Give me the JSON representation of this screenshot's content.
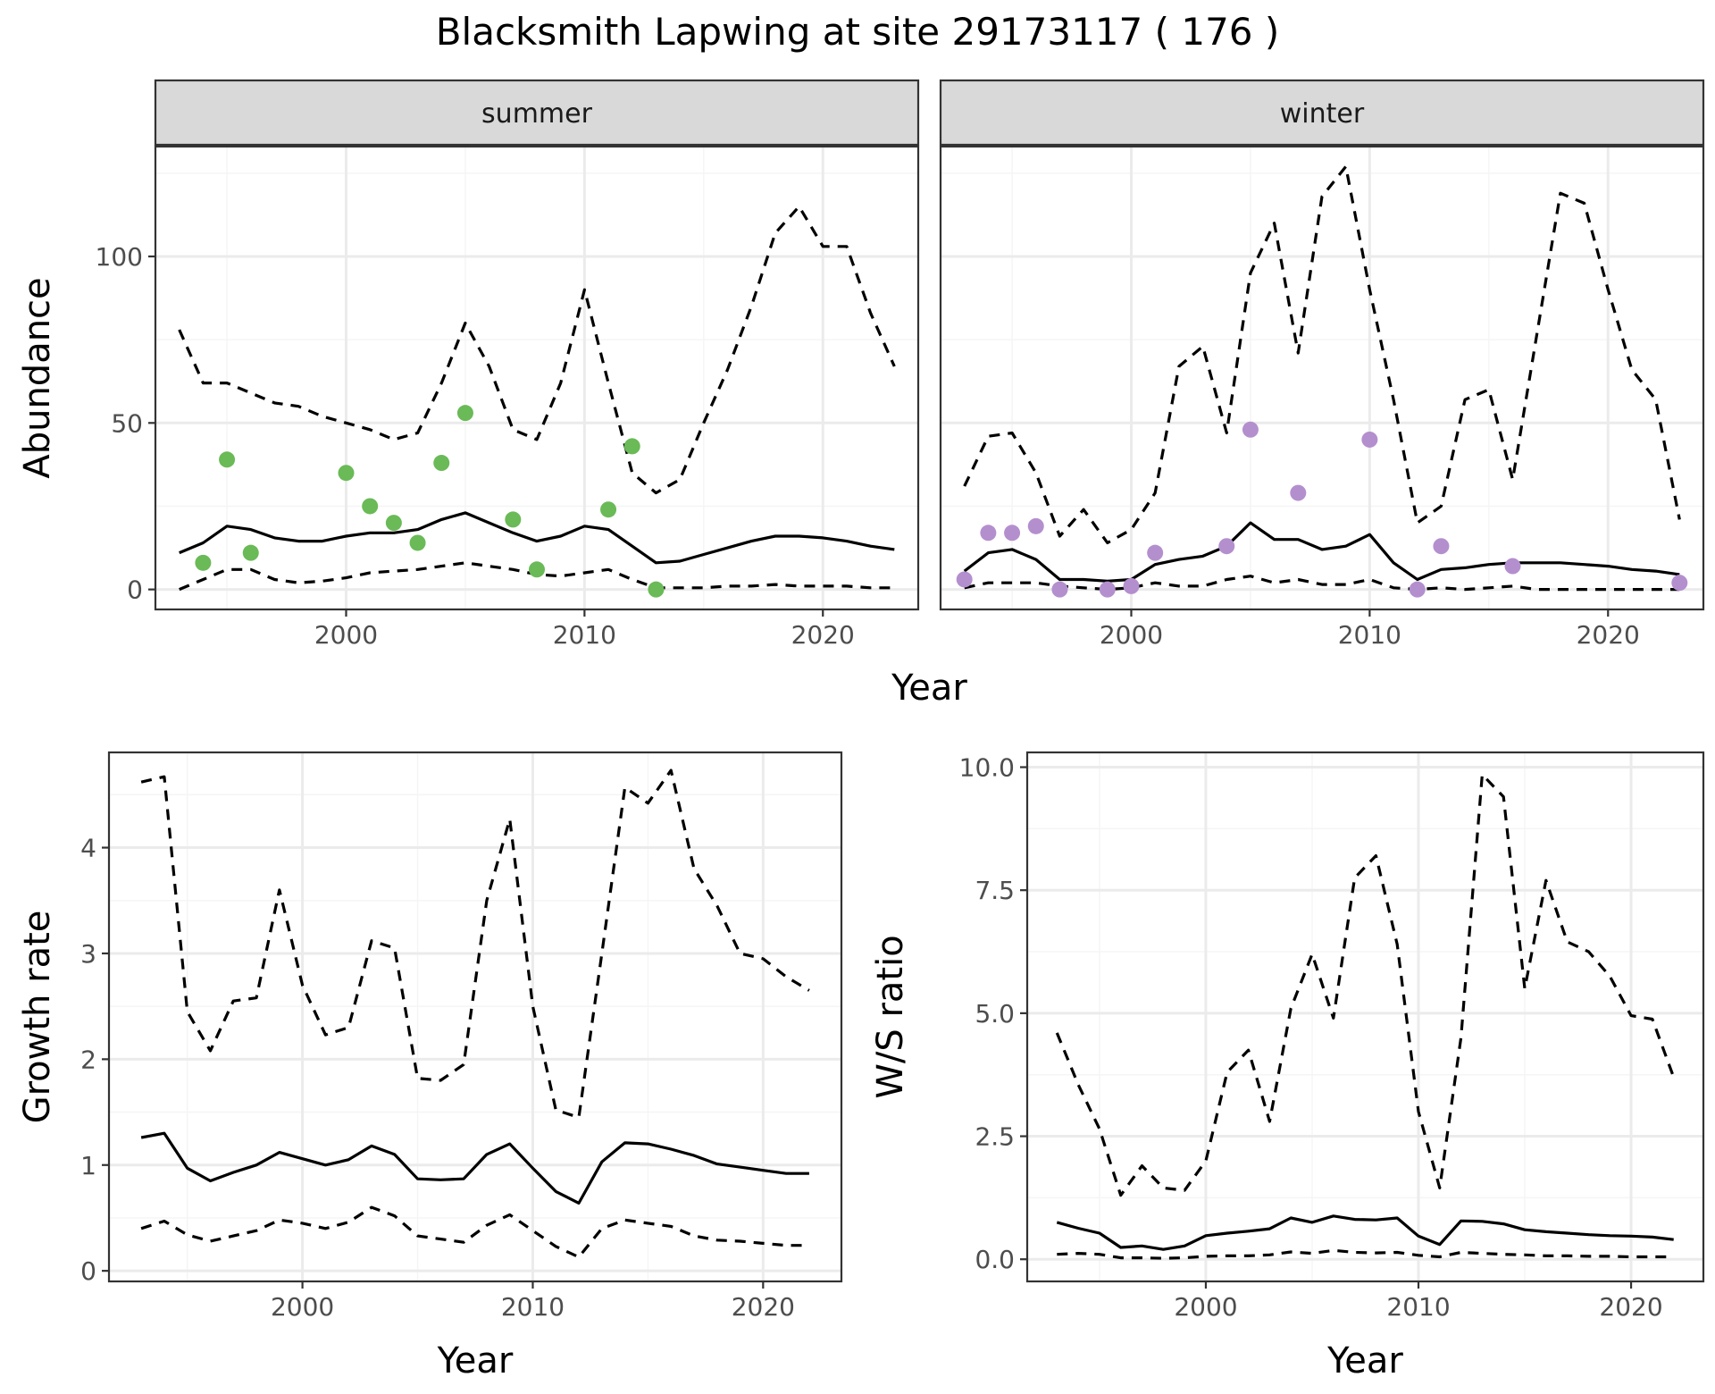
{
  "title": "Blacksmith Lapwing at site 29173117 ( 176 )",
  "colors": {
    "summer_points": "#6aba57",
    "winter_points": "#b48fce",
    "line": "#000000",
    "grid_major": "#ebebeb",
    "grid_minor": "#f5f5f5",
    "strip_bg": "#d9d9d9",
    "panel_border": "#333333"
  },
  "chart_data": [
    {
      "type": "line",
      "panel": "summer",
      "strip_label": "summer",
      "xlabel": "Year",
      "ylabel": "Abundance",
      "xlim": [
        1992,
        2024
      ],
      "ylim": [
        -6,
        133
      ],
      "x_ticks": [
        2000,
        2010,
        2020
      ],
      "y_ticks": [
        0,
        50,
        100
      ],
      "grid": true,
      "x": [
        1993,
        1994,
        1995,
        1996,
        1997,
        1998,
        1999,
        2000,
        2001,
        2002,
        2003,
        2004,
        2005,
        2006,
        2007,
        2008,
        2009,
        2010,
        2011,
        2012,
        2013,
        2014,
        2015,
        2016,
        2017,
        2018,
        2019,
        2020,
        2021,
        2022,
        2023
      ],
      "series": [
        {
          "role": "mean",
          "style": "solid",
          "values": [
            11,
            14,
            19,
            18,
            15.5,
            14.5,
            14.5,
            16,
            17,
            17,
            18,
            21,
            23,
            20,
            17,
            14.5,
            16,
            19,
            18,
            13,
            8,
            8.5,
            10.5,
            12.5,
            14.5,
            16,
            16,
            15.5,
            14.5,
            13,
            12
          ]
        },
        {
          "role": "upper",
          "style": "dashed",
          "values": [
            78,
            62,
            62,
            59,
            56,
            55,
            52,
            50,
            48,
            45,
            47,
            62,
            80,
            67,
            48,
            45,
            62,
            90,
            62,
            35,
            29,
            33,
            50,
            66,
            85,
            107,
            115,
            103,
            103,
            83,
            67
          ]
        },
        {
          "role": "lower",
          "style": "dashed",
          "values": [
            0,
            3,
            6,
            6,
            3,
            2,
            2.5,
            3.5,
            5,
            5.5,
            6,
            7,
            8,
            7,
            6,
            4.5,
            4,
            5,
            6,
            3,
            0.5,
            0.5,
            0.5,
            1,
            1,
            1.5,
            1,
            1,
            1,
            0.5,
            0.5
          ]
        }
      ],
      "points": {
        "x": [
          1994,
          1995,
          1996,
          2000,
          2001,
          2002,
          2003,
          2004,
          2005,
          2007,
          2008,
          2011,
          2012,
          2013
        ],
        "y": [
          8,
          39,
          11,
          35,
          25,
          20,
          14,
          38,
          53,
          21,
          6,
          24,
          43,
          0
        ]
      }
    },
    {
      "type": "line",
      "panel": "winter",
      "strip_label": "winter",
      "xlabel": "Year",
      "ylabel": "Abundance",
      "xlim": [
        1992,
        2024
      ],
      "ylim": [
        -6,
        133
      ],
      "x_ticks": [
        2000,
        2010,
        2020
      ],
      "y_ticks": [
        0,
        50,
        100
      ],
      "grid": true,
      "x": [
        1993,
        1994,
        1995,
        1996,
        1997,
        1998,
        1999,
        2000,
        2001,
        2002,
        2003,
        2004,
        2005,
        2006,
        2007,
        2008,
        2009,
        2010,
        2011,
        2012,
        2013,
        2014,
        2015,
        2016,
        2017,
        2018,
        2019,
        2020,
        2021,
        2022,
        2023
      ],
      "series": [
        {
          "role": "mean",
          "style": "solid",
          "values": [
            5.5,
            11,
            12,
            9,
            3,
            3,
            2.5,
            3,
            7.5,
            9,
            10,
            13,
            20,
            15,
            15,
            12,
            13,
            16.5,
            8,
            3,
            6,
            6.5,
            7.5,
            8,
            8,
            8,
            7.5,
            7,
            6,
            5.5,
            4.5
          ]
        },
        {
          "role": "upper",
          "style": "dashed",
          "values": [
            31,
            46,
            47,
            35,
            16,
            24,
            14,
            18,
            29,
            67,
            73,
            47,
            95,
            110,
            71,
            118,
            127,
            90,
            57,
            20,
            25,
            57,
            60,
            33,
            76,
            119,
            116,
            90,
            66,
            57,
            21
          ]
        },
        {
          "role": "lower",
          "style": "dashed",
          "values": [
            0.5,
            2,
            2,
            2,
            1,
            0.5,
            0,
            0.5,
            2,
            1,
            1,
            3,
            4,
            2,
            3,
            1.5,
            1.5,
            3,
            0.5,
            0,
            0.5,
            0,
            0.5,
            1,
            0,
            0,
            0,
            0,
            0,
            0,
            0
          ]
        }
      ],
      "points": {
        "x": [
          1993,
          1994,
          1995,
          1996,
          1997,
          1999,
          2000,
          2001,
          2004,
          2005,
          2007,
          2010,
          2012,
          2013,
          2016,
          2023
        ],
        "y": [
          3,
          17,
          17,
          19,
          0,
          0,
          1,
          11,
          13,
          48,
          29,
          45,
          0,
          13,
          7,
          2
        ]
      }
    },
    {
      "type": "line",
      "panel": "growth",
      "xlabel": "Year",
      "ylabel": "Growth rate",
      "xlim": [
        1991.6,
        2023.4
      ],
      "ylim": [
        -0.1,
        4.9
      ],
      "x_ticks": [
        2000,
        2010,
        2020
      ],
      "y_ticks": [
        0,
        1,
        2,
        3,
        4
      ],
      "grid": true,
      "x": [
        1993,
        1994,
        1995,
        1996,
        1997,
        1998,
        1999,
        2000,
        2001,
        2002,
        2003,
        2004,
        2005,
        2006,
        2007,
        2008,
        2009,
        2010,
        2011,
        2012,
        2013,
        2014,
        2015,
        2016,
        2017,
        2018,
        2019,
        2020,
        2021,
        2022
      ],
      "series": [
        {
          "role": "mean",
          "style": "solid",
          "values": [
            1.26,
            1.3,
            0.97,
            0.85,
            0.93,
            1.0,
            1.12,
            1.06,
            1.0,
            1.05,
            1.18,
            1.1,
            0.87,
            0.86,
            0.87,
            1.1,
            1.2,
            0.97,
            0.75,
            0.64,
            1.03,
            1.21,
            1.2,
            1.15,
            1.09,
            1.01,
            0.98,
            0.95,
            0.92,
            0.92
          ]
        },
        {
          "role": "upper",
          "style": "dashed",
          "values": [
            4.62,
            4.67,
            2.45,
            2.08,
            2.55,
            2.58,
            3.6,
            2.7,
            2.23,
            2.3,
            3.12,
            3.05,
            1.82,
            1.8,
            1.95,
            3.5,
            4.27,
            2.5,
            1.52,
            1.45,
            3.0,
            4.57,
            4.42,
            4.73,
            3.8,
            3.45,
            3.0,
            2.95,
            2.78,
            2.65
          ]
        },
        {
          "role": "lower",
          "style": "dashed",
          "values": [
            0.4,
            0.47,
            0.34,
            0.28,
            0.33,
            0.38,
            0.48,
            0.45,
            0.4,
            0.46,
            0.6,
            0.52,
            0.33,
            0.3,
            0.27,
            0.43,
            0.53,
            0.38,
            0.23,
            0.13,
            0.4,
            0.48,
            0.45,
            0.42,
            0.33,
            0.29,
            0.28,
            0.26,
            0.24,
            0.24
          ]
        }
      ]
    },
    {
      "type": "line",
      "panel": "ratio",
      "xlabel": "Year",
      "ylabel": "W/S ratio",
      "xlim": [
        1991.6,
        2023.4
      ],
      "ylim": [
        -0.45,
        10.3
      ],
      "x_ticks": [
        2000,
        2010,
        2020
      ],
      "y_ticks": [
        0.0,
        2.5,
        5.0,
        7.5,
        10.0
      ],
      "y_tick_labels": [
        "0.0",
        "2.5",
        "5.0",
        "7.5",
        "10.0"
      ],
      "grid": true,
      "x": [
        1993,
        1994,
        1995,
        1996,
        1997,
        1998,
        1999,
        2000,
        2001,
        2002,
        2003,
        2004,
        2005,
        2006,
        2007,
        2008,
        2009,
        2010,
        2011,
        2012,
        2013,
        2014,
        2015,
        2016,
        2017,
        2018,
        2019,
        2020,
        2021,
        2022
      ],
      "series": [
        {
          "role": "mean",
          "style": "solid",
          "values": [
            0.75,
            0.63,
            0.53,
            0.24,
            0.27,
            0.2,
            0.27,
            0.48,
            0.53,
            0.57,
            0.62,
            0.84,
            0.75,
            0.88,
            0.81,
            0.8,
            0.84,
            0.47,
            0.3,
            0.78,
            0.77,
            0.72,
            0.6,
            0.56,
            0.53,
            0.5,
            0.48,
            0.47,
            0.45,
            0.4
          ]
        },
        {
          "role": "upper",
          "style": "dashed",
          "values": [
            4.6,
            3.55,
            2.65,
            1.3,
            1.9,
            1.45,
            1.4,
            2.0,
            3.8,
            4.25,
            2.8,
            5.1,
            6.2,
            4.9,
            7.75,
            8.2,
            6.4,
            3.0,
            1.45,
            4.5,
            9.85,
            9.4,
            5.5,
            7.7,
            6.45,
            6.25,
            5.75,
            4.95,
            4.88,
            3.7
          ]
        },
        {
          "role": "lower",
          "style": "dashed",
          "values": [
            0.1,
            0.12,
            0.1,
            0.03,
            0.03,
            0.02,
            0.03,
            0.06,
            0.07,
            0.07,
            0.09,
            0.15,
            0.12,
            0.18,
            0.14,
            0.13,
            0.14,
            0.08,
            0.05,
            0.14,
            0.12,
            0.1,
            0.09,
            0.07,
            0.07,
            0.06,
            0.06,
            0.05,
            0.05,
            0.05
          ]
        }
      ]
    }
  ]
}
